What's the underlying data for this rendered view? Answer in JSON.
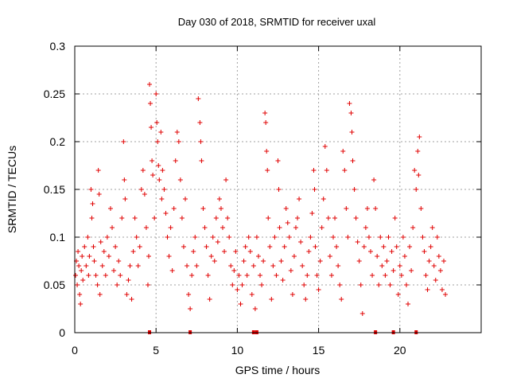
{
  "chart_data": {
    "type": "scatter",
    "title": "Day 030 of 2018, SRMTID for receiver uxal",
    "xlabel": "GPS time / hours",
    "ylabel": "SRMTID / TECUs",
    "xlim": [
      0,
      25
    ],
    "ylim": [
      0,
      0.3
    ],
    "x_ticks": [
      0,
      5,
      10,
      15,
      20
    ],
    "x_tick_labels": [
      "0",
      "5",
      "10",
      "15",
      "20"
    ],
    "y_ticks": [
      0,
      0.05,
      0.1,
      0.15,
      0.2,
      0.25,
      0.3
    ],
    "y_tick_labels": [
      "0",
      "0.05",
      "0.1",
      "0.15",
      "0.2",
      "0.25",
      "0.3"
    ],
    "grid": true,
    "marker": "plus",
    "color": "#e00000",
    "series": [
      {
        "name": "SRMTID",
        "points": [
          [
            0.05,
            0.06
          ],
          [
            0.1,
            0.075
          ],
          [
            0.15,
            0.05
          ],
          [
            0.2,
            0.085
          ],
          [
            0.25,
            0.07
          ],
          [
            0.3,
            0.04
          ],
          [
            0.35,
            0.03
          ],
          [
            0.4,
            0.065
          ],
          [
            0.45,
            0.08
          ],
          [
            0.5,
            0.055
          ],
          [
            0.6,
            0.09
          ],
          [
            0.7,
            0.07
          ],
          [
            0.8,
            0.1
          ],
          [
            0.85,
            0.06
          ],
          [
            0.9,
            0.08
          ],
          [
            1.0,
            0.15
          ],
          [
            1.05,
            0.12
          ],
          [
            1.1,
            0.135
          ],
          [
            1.15,
            0.09
          ],
          [
            1.2,
            0.075
          ],
          [
            1.3,
            0.06
          ],
          [
            1.4,
            0.05
          ],
          [
            1.45,
            0.17
          ],
          [
            1.5,
            0.145
          ],
          [
            1.55,
            0.04
          ],
          [
            1.6,
            0.095
          ],
          [
            1.7,
            0.07
          ],
          [
            1.8,
            0.085
          ],
          [
            1.9,
            0.06
          ],
          [
            2.0,
            0.1
          ],
          [
            2.1,
            0.08
          ],
          [
            2.2,
            0.13
          ],
          [
            2.3,
            0.11
          ],
          [
            2.4,
            0.065
          ],
          [
            2.5,
            0.09
          ],
          [
            2.6,
            0.05
          ],
          [
            2.7,
            0.075
          ],
          [
            2.8,
            0.06
          ],
          [
            2.9,
            0.12
          ],
          [
            3.0,
            0.2
          ],
          [
            3.05,
            0.16
          ],
          [
            3.1,
            0.14
          ],
          [
            3.2,
            0.04
          ],
          [
            3.3,
            0.055
          ],
          [
            3.4,
            0.07
          ],
          [
            3.5,
            0.035
          ],
          [
            3.6,
            0.085
          ],
          [
            3.7,
            0.12
          ],
          [
            3.8,
            0.1
          ],
          [
            3.9,
            0.07
          ],
          [
            4.0,
            0.09
          ],
          [
            4.1,
            0.15
          ],
          [
            4.2,
            0.17
          ],
          [
            4.3,
            0.145
          ],
          [
            4.4,
            0.11
          ],
          [
            4.5,
            0.05
          ],
          [
            4.55,
            0.08
          ],
          [
            4.6,
            0.26
          ],
          [
            4.65,
            0.24
          ],
          [
            4.7,
            0.215
          ],
          [
            4.75,
            0.18
          ],
          [
            4.8,
            0.165
          ],
          [
            4.9,
            0.12
          ],
          [
            5.0,
            0.25
          ],
          [
            5.05,
            0.22
          ],
          [
            5.1,
            0.2
          ],
          [
            5.15,
            0.175
          ],
          [
            5.2,
            0.16
          ],
          [
            5.3,
            0.21
          ],
          [
            5.35,
            0.14
          ],
          [
            5.4,
            0.17
          ],
          [
            5.5,
            0.15
          ],
          [
            5.6,
            0.125
          ],
          [
            5.7,
            0.1
          ],
          [
            5.8,
            0.08
          ],
          [
            5.9,
            0.11
          ],
          [
            6.0,
            0.065
          ],
          [
            6.1,
            0.13
          ],
          [
            6.2,
            0.18
          ],
          [
            6.3,
            0.21
          ],
          [
            6.4,
            0.2
          ],
          [
            6.5,
            0.16
          ],
          [
            6.6,
            0.12
          ],
          [
            6.7,
            0.09
          ],
          [
            6.8,
            0.14
          ],
          [
            6.9,
            0.07
          ],
          [
            7.0,
            0.04
          ],
          [
            7.1,
            0.025
          ],
          [
            7.2,
            0.06
          ],
          [
            7.3,
            0.085
          ],
          [
            7.4,
            0.1
          ],
          [
            7.5,
            0.07
          ],
          [
            7.6,
            0.245
          ],
          [
            7.7,
            0.22
          ],
          [
            7.75,
            0.2
          ],
          [
            7.8,
            0.18
          ],
          [
            7.9,
            0.13
          ],
          [
            8.0,
            0.11
          ],
          [
            8.1,
            0.09
          ],
          [
            8.2,
            0.06
          ],
          [
            8.3,
            0.035
          ],
          [
            8.4,
            0.08
          ],
          [
            8.5,
            0.1
          ],
          [
            8.6,
            0.075
          ],
          [
            8.7,
            0.12
          ],
          [
            8.8,
            0.095
          ],
          [
            8.9,
            0.14
          ],
          [
            9.0,
            0.13
          ],
          [
            9.1,
            0.11
          ],
          [
            9.2,
            0.085
          ],
          [
            9.3,
            0.16
          ],
          [
            9.4,
            0.12
          ],
          [
            9.5,
            0.1
          ],
          [
            9.6,
            0.07
          ],
          [
            9.7,
            0.05
          ],
          [
            9.8,
            0.065
          ],
          [
            9.9,
            0.085
          ],
          [
            10.0,
            0.045
          ],
          [
            10.1,
            0.06
          ],
          [
            10.2,
            0.03
          ],
          [
            10.3,
            0.05
          ],
          [
            10.4,
            0.075
          ],
          [
            10.5,
            0.09
          ],
          [
            10.6,
            0.06
          ],
          [
            10.7,
            0.1
          ],
          [
            10.8,
            0.085
          ],
          [
            10.9,
            0.04
          ],
          [
            11.0,
            0.07
          ],
          [
            11.1,
            0.025
          ],
          [
            11.2,
            0.1
          ],
          [
            11.3,
            0.08
          ],
          [
            11.4,
            0.06
          ],
          [
            11.5,
            0.05
          ],
          [
            11.6,
            0.075
          ],
          [
            11.7,
            0.23
          ],
          [
            11.75,
            0.22
          ],
          [
            11.8,
            0.19
          ],
          [
            11.85,
            0.17
          ],
          [
            11.9,
            0.12
          ],
          [
            12.0,
            0.09
          ],
          [
            12.1,
            0.035
          ],
          [
            12.2,
            0.07
          ],
          [
            12.3,
            0.1
          ],
          [
            12.4,
            0.06
          ],
          [
            12.5,
            0.18
          ],
          [
            12.55,
            0.15
          ],
          [
            12.6,
            0.11
          ],
          [
            12.7,
            0.075
          ],
          [
            12.8,
            0.055
          ],
          [
            12.9,
            0.09
          ],
          [
            13.0,
            0.13
          ],
          [
            13.1,
            0.115
          ],
          [
            13.2,
            0.1
          ],
          [
            13.3,
            0.065
          ],
          [
            13.4,
            0.04
          ],
          [
            13.5,
            0.08
          ],
          [
            13.6,
            0.11
          ],
          [
            13.7,
            0.12
          ],
          [
            13.8,
            0.14
          ],
          [
            13.9,
            0.095
          ],
          [
            14.0,
            0.07
          ],
          [
            14.1,
            0.05
          ],
          [
            14.2,
            0.035
          ],
          [
            14.3,
            0.06
          ],
          [
            14.4,
            0.085
          ],
          [
            14.5,
            0.1
          ],
          [
            14.6,
            0.125
          ],
          [
            14.7,
            0.17
          ],
          [
            14.75,
            0.15
          ],
          [
            14.8,
            0.09
          ],
          [
            14.9,
            0.06
          ],
          [
            15.0,
            0.045
          ],
          [
            15.1,
            0.075
          ],
          [
            15.2,
            0.11
          ],
          [
            15.3,
            0.14
          ],
          [
            15.4,
            0.195
          ],
          [
            15.5,
            0.17
          ],
          [
            15.6,
            0.12
          ],
          [
            15.7,
            0.08
          ],
          [
            15.8,
            0.06
          ],
          [
            15.9,
            0.1
          ],
          [
            16.0,
            0.12
          ],
          [
            16.1,
            0.09
          ],
          [
            16.2,
            0.07
          ],
          [
            16.3,
            0.05
          ],
          [
            16.4,
            0.035
          ],
          [
            16.5,
            0.19
          ],
          [
            16.6,
            0.17
          ],
          [
            16.7,
            0.13
          ],
          [
            16.8,
            0.1
          ],
          [
            16.9,
            0.24
          ],
          [
            17.0,
            0.23
          ],
          [
            17.05,
            0.21
          ],
          [
            17.1,
            0.18
          ],
          [
            17.2,
            0.15
          ],
          [
            17.3,
            0.12
          ],
          [
            17.4,
            0.095
          ],
          [
            17.5,
            0.075
          ],
          [
            17.6,
            0.05
          ],
          [
            17.7,
            0.02
          ],
          [
            17.8,
            0.09
          ],
          [
            17.9,
            0.11
          ],
          [
            18.0,
            0.13
          ],
          [
            18.1,
            0.1
          ],
          [
            18.2,
            0.085
          ],
          [
            18.3,
            0.06
          ],
          [
            18.4,
            0.16
          ],
          [
            18.5,
            0.13
          ],
          [
            18.6,
            0.08
          ],
          [
            18.7,
            0.05
          ],
          [
            18.8,
            0.1
          ],
          [
            18.9,
            0.07
          ],
          [
            19.0,
            0.09
          ],
          [
            19.1,
            0.06
          ],
          [
            19.2,
            0.075
          ],
          [
            19.3,
            0.1
          ],
          [
            19.4,
            0.05
          ],
          [
            19.5,
            0.085
          ],
          [
            19.6,
            0.065
          ],
          [
            19.7,
            0.12
          ],
          [
            19.8,
            0.09
          ],
          [
            19.9,
            0.04
          ],
          [
            20.0,
            0.07
          ],
          [
            20.1,
            0.06
          ],
          [
            20.2,
            0.1
          ],
          [
            20.3,
            0.08
          ],
          [
            20.4,
            0.05
          ],
          [
            20.5,
            0.03
          ],
          [
            20.6,
            0.09
          ],
          [
            20.7,
            0.065
          ],
          [
            20.8,
            0.11
          ],
          [
            20.9,
            0.17
          ],
          [
            21.0,
            0.15
          ],
          [
            21.1,
            0.19
          ],
          [
            21.15,
            0.165
          ],
          [
            21.2,
            0.205
          ],
          [
            21.3,
            0.13
          ],
          [
            21.4,
            0.1
          ],
          [
            21.5,
            0.085
          ],
          [
            21.6,
            0.06
          ],
          [
            21.7,
            0.045
          ],
          [
            21.8,
            0.075
          ],
          [
            21.9,
            0.09
          ],
          [
            22.0,
            0.11
          ],
          [
            22.1,
            0.07
          ],
          [
            22.2,
            0.055
          ],
          [
            22.3,
            0.1
          ],
          [
            22.4,
            0.08
          ],
          [
            22.5,
            0.065
          ],
          [
            22.6,
            0.045
          ],
          [
            22.7,
            0.075
          ],
          [
            22.8,
            0.04
          ]
        ]
      }
    ],
    "markers_on_x_axis": [
      4.6,
      7.1,
      11.0,
      11.2,
      18.5,
      19.6,
      21.0
    ]
  }
}
